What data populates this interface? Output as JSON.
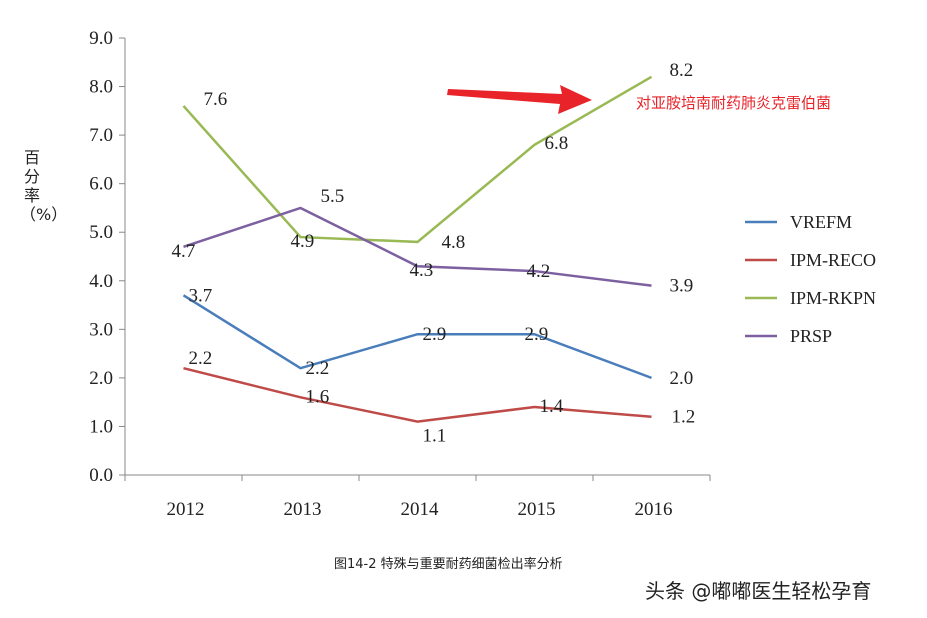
{
  "chart_data": {
    "type": "line",
    "categories": [
      "2012",
      "2013",
      "2014",
      "2015",
      "2016"
    ],
    "ylim": [
      0,
      9
    ],
    "yticks": [
      "0.0",
      "1.0",
      "2.0",
      "3.0",
      "4.0",
      "5.0",
      "6.0",
      "7.0",
      "8.0",
      "9.0"
    ],
    "ylabel": "百分率（%）",
    "legend_position": "right",
    "grid": false,
    "series": [
      {
        "name": "VREFM",
        "color": "#4a7ebb",
        "values": [
          3.7,
          2.2,
          2.9,
          2.9,
          2.0
        ]
      },
      {
        "name": "IPM-RECO",
        "color": "#be4b48",
        "values": [
          2.2,
          1.6,
          1.1,
          1.4,
          1.2
        ]
      },
      {
        "name": "IPM-RKPN",
        "color": "#98b954",
        "values": [
          7.6,
          4.9,
          4.8,
          6.8,
          8.2
        ]
      },
      {
        "name": "PRSP",
        "color": "#7d60a0",
        "values": [
          4.7,
          5.5,
          4.3,
          4.2,
          3.9
        ]
      }
    ],
    "annotation": {
      "text": "对亚胺培南耐药肺炎克雷伯菌",
      "color": "#e8242a"
    }
  },
  "caption": "图14-2 特殊与重要耐药细菌检出率分析",
  "watermark": "头条 @嘟嘟医生轻松孕育"
}
